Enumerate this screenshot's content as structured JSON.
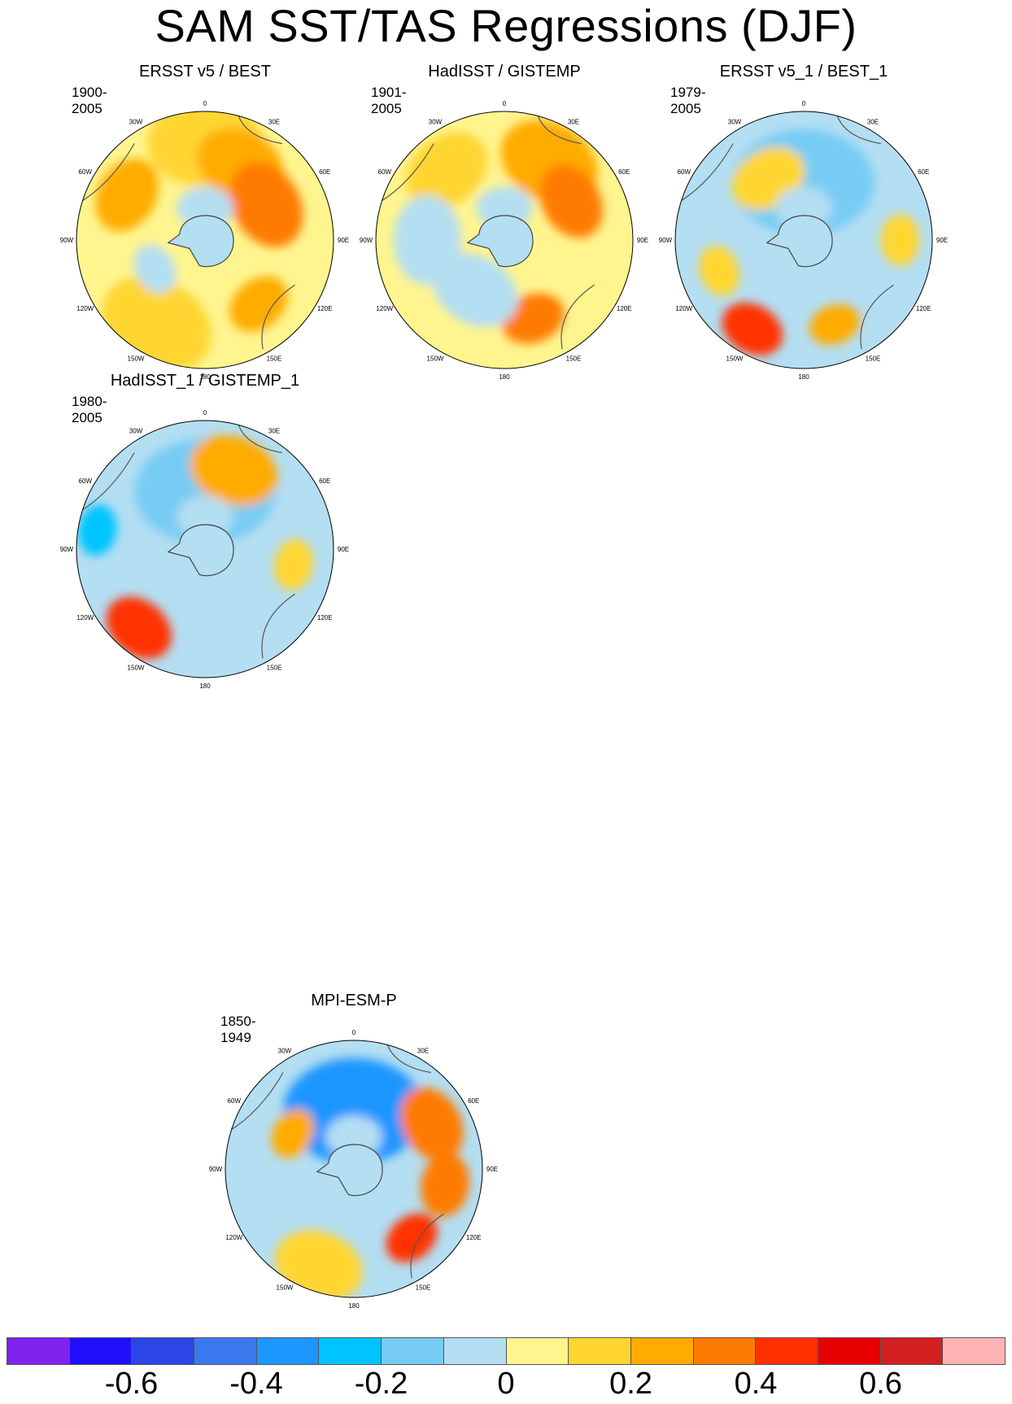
{
  "title": "SAM SST/TAS Regressions (DJF)",
  "lon_labels": [
    "0",
    "30E",
    "60E",
    "90E",
    "120E",
    "150E",
    "180",
    "150W",
    "120W",
    "90W",
    "60W",
    "30W"
  ],
  "panels": [
    {
      "id": "ersst-best",
      "title": "ERSST v5 / BEST",
      "period": "1900-2005"
    },
    {
      "id": "hadisst-gistemp",
      "title": "HadISST / GISTEMP",
      "period": "1901-2005"
    },
    {
      "id": "ersst1-best1",
      "title": "ERSST v5_1 / BEST_1",
      "period": "1979-2005"
    },
    {
      "id": "hadisst1-gistemp1",
      "title": "HadISST_1 / GISTEMP_1",
      "period": "1980-2005"
    },
    {
      "id": "mpi-esm-p",
      "title": "MPI-ESM-P",
      "period": "1850-1949"
    }
  ],
  "colorbar": {
    "colors": [
      "#7e22ee",
      "#1f0ffa",
      "#2c45e6",
      "#3a78ee",
      "#1e96ff",
      "#00c4ff",
      "#77ccf4",
      "#b4def2",
      "#fff58f",
      "#ffd530",
      "#ffab00",
      "#ff7a00",
      "#ff3000",
      "#e80000",
      "#d21f1f",
      "#ffb4b4"
    ],
    "tick_labels": [
      "-0.6",
      "-0.4",
      "-0.2",
      "0",
      "0.2",
      "0.4",
      "0.6"
    ]
  },
  "chart_data": {
    "type": "polar-contour-maps",
    "title": "SAM SST/TAS Regressions (DJF)",
    "projection": "south polar stereographic",
    "colorbar_levels": [
      -0.7,
      -0.6,
      -0.5,
      -0.4,
      -0.3,
      -0.2,
      -0.1,
      0,
      0.1,
      0.2,
      0.3,
      0.4,
      0.5,
      0.6,
      0.7
    ],
    "colorbar_range": [
      -0.8,
      0.8
    ],
    "maps": [
      {
        "name": "ERSST v5 / BEST",
        "period": "1900-2005",
        "pattern": "mostly positive 0.1-0.4, weak negative near Antarctica"
      },
      {
        "name": "HadISST / GISTEMP",
        "period": "1901-2005",
        "pattern": "mixed, positive 0.1-0.4 in Atlantic/Indian sectors"
      },
      {
        "name": "ERSST v5_1 / BEST_1",
        "period": "1979-2005",
        "pattern": "negative ring around Antarctica, positive near 150W up to 0.5"
      },
      {
        "name": "HadISST_1 / GISTEMP_1",
        "period": "1980-2005",
        "pattern": "negative ring, positive near 135W up to 0.5"
      },
      {
        "name": "MPI-ESM-P",
        "period": "1850-1949",
        "pattern": "strong negative inner ring, positive outer ring up to 0.6"
      }
    ]
  }
}
